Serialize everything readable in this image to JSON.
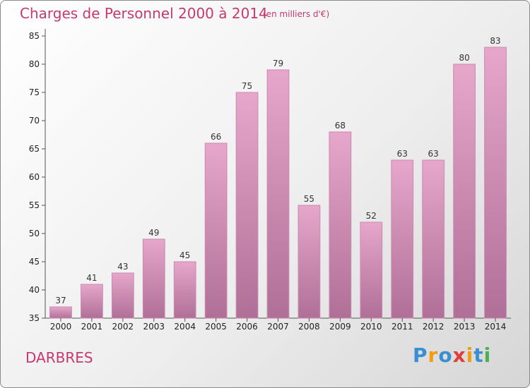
{
  "title": "Charges de Personnel 2000 à 2014",
  "subtitle": "(en milliers d'€)",
  "location": "DARBRES",
  "logo": {
    "text": "Proxiti",
    "colors": [
      "#3a8fd0",
      "#f39c12",
      "#3a8fd0",
      "#e03c3c",
      "#f39c12",
      "#3a8fd0",
      "#4caf50"
    ]
  },
  "colors": {
    "title": "#c43a6f",
    "bar_top": "#e6a7cb",
    "bar_bottom": "#b06f97",
    "bar_edge": "#c98ab0"
  },
  "chart_data": {
    "type": "bar",
    "title": "Charges de Personnel 2000 à 2014",
    "subtitle": "(en milliers d'€)",
    "xlabel": "",
    "ylabel": "",
    "categories": [
      "2000",
      "2001",
      "2002",
      "2003",
      "2004",
      "2005",
      "2006",
      "2007",
      "2008",
      "2009",
      "2010",
      "2011",
      "2012",
      "2013",
      "2014"
    ],
    "values": [
      37,
      41,
      43,
      49,
      45,
      66,
      75,
      79,
      55,
      68,
      52,
      63,
      63,
      80,
      83
    ],
    "ylim": [
      35,
      85
    ],
    "yticks": [
      35,
      40,
      45,
      50,
      55,
      60,
      65,
      70,
      75,
      80,
      85
    ],
    "grid": false,
    "data_labels": true
  }
}
